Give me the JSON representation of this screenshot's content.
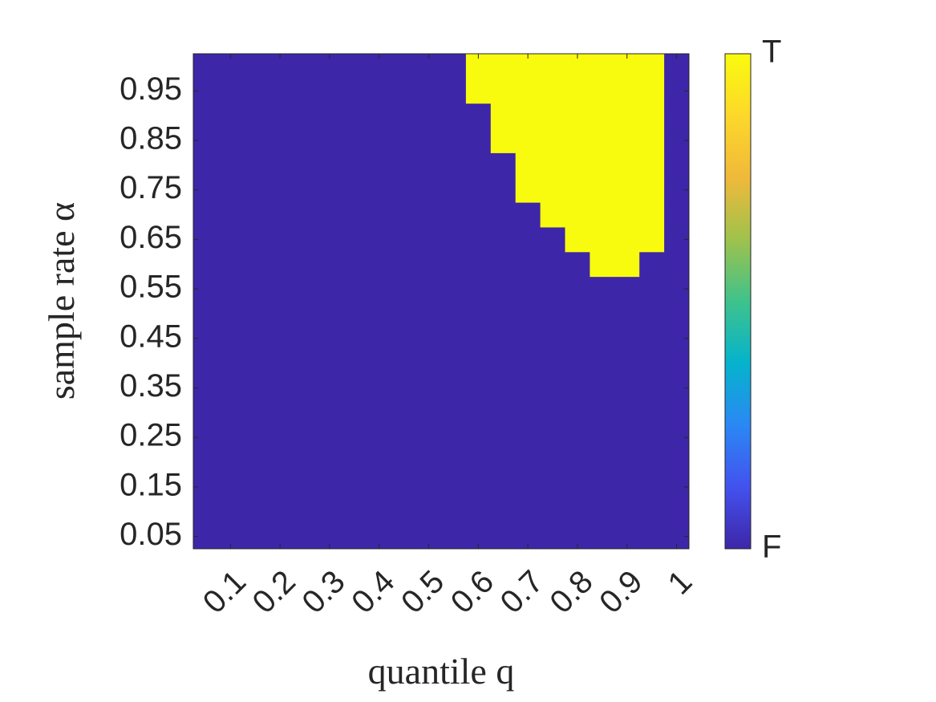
{
  "chart_data": {
    "type": "heatmap",
    "xlabel": "quantile q",
    "ylabel": "sample rate α",
    "x": [
      0.05,
      0.1,
      0.15,
      0.2,
      0.25,
      0.3,
      0.35,
      0.4,
      0.45,
      0.5,
      0.55,
      0.6,
      0.65,
      0.7,
      0.75,
      0.8,
      0.85,
      0.9,
      0.95,
      1
    ],
    "y": [
      0.05,
      0.1,
      0.15,
      0.2,
      0.25,
      0.3,
      0.35,
      0.4,
      0.45,
      0.5,
      0.55,
      0.6,
      0.65,
      0.7,
      0.75,
      0.8,
      0.85,
      0.9,
      0.95,
      1
    ],
    "z": [
      [
        0,
        0,
        0,
        0,
        0,
        0,
        0,
        0,
        0,
        0,
        0,
        0,
        0,
        0,
        0,
        0,
        0,
        0,
        0,
        0
      ],
      [
        0,
        0,
        0,
        0,
        0,
        0,
        0,
        0,
        0,
        0,
        0,
        0,
        0,
        0,
        0,
        0,
        0,
        0,
        0,
        0
      ],
      [
        0,
        0,
        0,
        0,
        0,
        0,
        0,
        0,
        0,
        0,
        0,
        0,
        0,
        0,
        0,
        0,
        0,
        0,
        0,
        0
      ],
      [
        0,
        0,
        0,
        0,
        0,
        0,
        0,
        0,
        0,
        0,
        0,
        0,
        0,
        0,
        0,
        0,
        0,
        0,
        0,
        0
      ],
      [
        0,
        0,
        0,
        0,
        0,
        0,
        0,
        0,
        0,
        0,
        0,
        0,
        0,
        0,
        0,
        0,
        0,
        0,
        0,
        0
      ],
      [
        0,
        0,
        0,
        0,
        0,
        0,
        0,
        0,
        0,
        0,
        0,
        0,
        0,
        0,
        0,
        0,
        0,
        0,
        0,
        0
      ],
      [
        0,
        0,
        0,
        0,
        0,
        0,
        0,
        0,
        0,
        0,
        0,
        0,
        0,
        0,
        0,
        0,
        0,
        0,
        0,
        0
      ],
      [
        0,
        0,
        0,
        0,
        0,
        0,
        0,
        0,
        0,
        0,
        0,
        0,
        0,
        0,
        0,
        0,
        0,
        0,
        0,
        0
      ],
      [
        0,
        0,
        0,
        0,
        0,
        0,
        0,
        0,
        0,
        0,
        0,
        0,
        0,
        0,
        0,
        0,
        0,
        0,
        0,
        0
      ],
      [
        0,
        0,
        0,
        0,
        0,
        0,
        0,
        0,
        0,
        0,
        0,
        0,
        0,
        0,
        0,
        0,
        0,
        0,
        0,
        0
      ],
      [
        0,
        0,
        0,
        0,
        0,
        0,
        0,
        0,
        0,
        0,
        0,
        0,
        0,
        0,
        0,
        0,
        0,
        0,
        0,
        0
      ],
      [
        0,
        0,
        0,
        0,
        0,
        0,
        0,
        0,
        0,
        0,
        0,
        0,
        0,
        0,
        0,
        0,
        1,
        1,
        0,
        0
      ],
      [
        0,
        0,
        0,
        0,
        0,
        0,
        0,
        0,
        0,
        0,
        0,
        0,
        0,
        0,
        0,
        1,
        1,
        1,
        1,
        0
      ],
      [
        0,
        0,
        0,
        0,
        0,
        0,
        0,
        0,
        0,
        0,
        0,
        0,
        0,
        0,
        1,
        1,
        1,
        1,
        1,
        0
      ],
      [
        0,
        0,
        0,
        0,
        0,
        0,
        0,
        0,
        0,
        0,
        0,
        0,
        0,
        1,
        1,
        1,
        1,
        1,
        1,
        0
      ],
      [
        0,
        0,
        0,
        0,
        0,
        0,
        0,
        0,
        0,
        0,
        0,
        0,
        0,
        1,
        1,
        1,
        1,
        1,
        1,
        0
      ],
      [
        0,
        0,
        0,
        0,
        0,
        0,
        0,
        0,
        0,
        0,
        0,
        0,
        1,
        1,
        1,
        1,
        1,
        1,
        1,
        0
      ],
      [
        0,
        0,
        0,
        0,
        0,
        0,
        0,
        0,
        0,
        0,
        0,
        0,
        1,
        1,
        1,
        1,
        1,
        1,
        1,
        0
      ],
      [
        0,
        0,
        0,
        0,
        0,
        0,
        0,
        0,
        0,
        0,
        0,
        1,
        1,
        1,
        1,
        1,
        1,
        1,
        1,
        0
      ],
      [
        0,
        0,
        0,
        0,
        0,
        0,
        0,
        0,
        0,
        0,
        0,
        1,
        1,
        1,
        1,
        1,
        1,
        1,
        1,
        0
      ]
    ],
    "xlim": [
      0.025,
      1.025
    ],
    "ylim": [
      0.025,
      1.025
    ],
    "xticks": [
      0.1,
      0.2,
      0.3,
      0.4,
      0.5,
      0.6,
      0.7,
      0.8,
      0.9,
      1
    ],
    "yticks": [
      0.05,
      0.15,
      0.25,
      0.35,
      0.45,
      0.55,
      0.65,
      0.75,
      0.85,
      0.95
    ],
    "clim": [
      0,
      1
    ],
    "cticks": [
      {
        "value": 0,
        "label": "F"
      },
      {
        "value": 1,
        "label": "T"
      }
    ],
    "colormap": [
      "#3e26a8",
      "#4352ee",
      "#2a88f4",
      "#05b3cc",
      "#3fc28c",
      "#9fc24c",
      "#f0b93b",
      "#fdd82a",
      "#f9fb0e"
    ]
  }
}
